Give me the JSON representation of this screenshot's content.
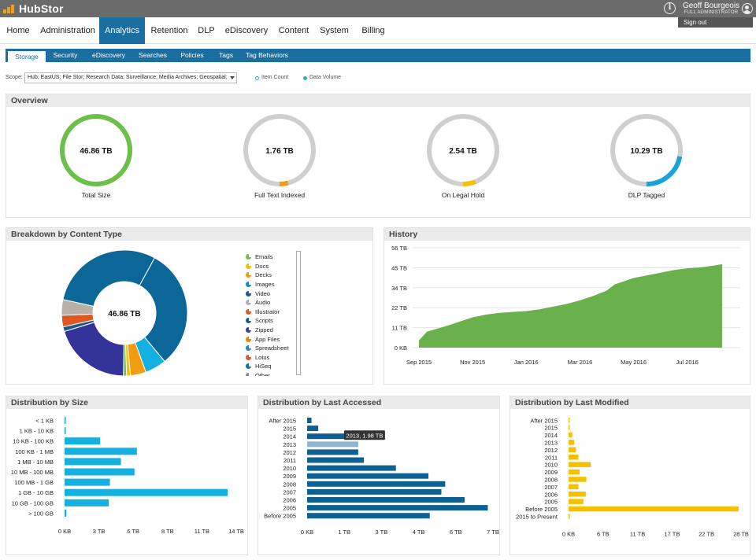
{
  "app": {
    "name": "HubStor"
  },
  "user": {
    "name": "Geoff Bourgeois",
    "role": "FULL ADMINISTRATOR",
    "signout": "Sign out"
  },
  "nav": [
    "Home",
    "Administration",
    "Analytics",
    "Retention",
    "DLP",
    "eDiscovery",
    "Content",
    "System",
    "Billing"
  ],
  "nav_active": "Analytics",
  "subnav": [
    "Storage",
    "Security",
    "eDiscovery",
    "Searches",
    "Policies",
    "Tags",
    "Tag Behaviors"
  ],
  "subnav_active": "Storage",
  "scope": {
    "label": "Scope:",
    "value": "Hub; EastUS; File Stor; Research Data; Surveillance; Media Archives; Geospatial;",
    "legend": [
      {
        "label": "Item Count",
        "style": "hollow",
        "color": "#29a9d6"
      },
      {
        "label": "Data Volume",
        "style": "filled",
        "color": "#29a9d6"
      }
    ]
  },
  "overview": {
    "title": "Overview",
    "gauges": [
      {
        "value": "46.86 TB",
        "label": "Total Size",
        "fraction": 1.0,
        "color": "#6cc04a"
      },
      {
        "value": "1.76 TB",
        "label": "Full Text Indexed",
        "fraction": 0.04,
        "color": "#f39c12"
      },
      {
        "value": "2.54 TB",
        "label": "On Legal Hold",
        "fraction": 0.06,
        "color": "#f5c000"
      },
      {
        "value": "10.29 TB",
        "label": "DLP Tagged",
        "fraction": 0.22,
        "color": "#1aa3d8"
      }
    ]
  },
  "breakdown": {
    "title": "Breakdown by Content Type",
    "center_label": "46.86 TB",
    "types": [
      {
        "label": "Emails",
        "color": "#6cc04a"
      },
      {
        "label": "Docs",
        "color": "#f5c000"
      },
      {
        "label": "Decks",
        "color": "#f39c12"
      },
      {
        "label": "Images",
        "color": "#1a8ac0"
      },
      {
        "label": "Video",
        "color": "#1a5a90"
      },
      {
        "label": "Audio",
        "color": "#b0b0b0"
      },
      {
        "label": "Illustrator",
        "color": "#e2571f"
      },
      {
        "label": "Scripts",
        "color": "#1a5a90"
      },
      {
        "label": "Zipped",
        "color": "#3a3aa0"
      },
      {
        "label": "App Files",
        "color": "#e08a00"
      },
      {
        "label": "Spreadsheet",
        "color": "#1a8ac0"
      },
      {
        "label": "Lotus",
        "color": "#e2571f"
      },
      {
        "label": "HiSeq",
        "color": "#1a6ea0"
      },
      {
        "label": "Other",
        "color": "#888888"
      }
    ]
  },
  "chart_data": [
    {
      "type": "pie",
      "title": "Breakdown by Content Type",
      "center_label": "46.86 TB",
      "slices": [
        {
          "label": "Images",
          "value": 0.31,
          "color": "#0b6797"
        },
        {
          "label": "Spreadsheet",
          "value": 0.055,
          "color": "#13b1e0"
        },
        {
          "label": "Decks",
          "value": 0.04,
          "color": "#f39c12"
        },
        {
          "label": "Docs",
          "value": 0.01,
          "color": "#f5c000"
        },
        {
          "label": "Emails",
          "value": 0.008,
          "color": "#6cc04a"
        },
        {
          "label": "Zipped",
          "value": 0.2,
          "color": "#33339a"
        },
        {
          "label": "Scripts",
          "value": 0.012,
          "color": "#1a5a90"
        },
        {
          "label": "Illustrator",
          "value": 0.03,
          "color": "#e2571f"
        },
        {
          "label": "Audio",
          "value": 0.04,
          "color": "#b9b0a8"
        },
        {
          "label": "Video",
          "value": 0.295,
          "color": "#0b6797"
        }
      ]
    },
    {
      "type": "area",
      "title": "History",
      "x_ticks": [
        "Sep 2015",
        "Nov 2015",
        "Jan 2016",
        "Mar 2016",
        "May 2016",
        "Jul 2016"
      ],
      "y_ticks": [
        "0 KB",
        "11 TB",
        "22 TB",
        "34 TB",
        "45 TB",
        "56 TB"
      ],
      "ylim": [
        0,
        56
      ],
      "x_months": [
        0,
        0.3,
        1,
        1.5,
        2,
        2.5,
        3,
        3.5,
        4,
        4.5,
        5,
        5.5,
        6,
        6.5,
        7,
        7.3,
        7.6,
        8,
        8.5,
        9,
        9.5,
        10,
        10.5,
        11,
        11.3
      ],
      "values": [
        4,
        9,
        12,
        14.5,
        17,
        18.5,
        19.5,
        20,
        20.5,
        21.5,
        23,
        24.5,
        26.5,
        29,
        32,
        35.5,
        37,
        39,
        40.5,
        42,
        43.5,
        44.5,
        45,
        46,
        46.8
      ],
      "color": "#6ab04c"
    },
    {
      "type": "bar",
      "orientation": "horizontal",
      "title": "Distribution by Size",
      "categories": [
        "< 1 KB",
        "1 KB - 10 KB",
        "10 KB - 100 KB",
        "100 KB - 1 MB",
        "1 MB - 10 MB",
        "10 MB - 100 MB",
        "100 MB - 1 GB",
        "1 GB - 10 GB",
        "10 GB - 100 GB",
        "> 100 GB"
      ],
      "values": [
        0.05,
        0.05,
        2.9,
        5.9,
        4.6,
        5.7,
        3.7,
        13.3,
        3.6,
        0.15
      ],
      "x_ticks": [
        "0 KB",
        "3 TB",
        "6 TB",
        "8 TB",
        "11 TB",
        "14 TB"
      ],
      "xlim": [
        0,
        14
      ],
      "color": "#14b0e0"
    },
    {
      "type": "bar",
      "orientation": "horizontal",
      "title": "Distribution by Last Accessed",
      "categories": [
        "After 2015",
        "2015",
        "2014",
        "2013",
        "2012",
        "2011",
        "2010",
        "2009",
        "2008",
        "2007",
        "2006",
        "2005",
        "Before 2005"
      ],
      "values": [
        0.17,
        0.43,
        1.55,
        1.98,
        1.98,
        2.2,
        3.44,
        4.7,
        5.35,
        5.2,
        6.1,
        7.0,
        4.75
      ],
      "highlight_index": 3,
      "tooltip": "2013, 1.98 TB",
      "x_ticks": [
        "0 KB",
        "1 TB",
        "3 TB",
        "4 TB",
        "6 TB",
        "7 TB"
      ],
      "xlim": [
        0,
        7.2
      ],
      "color": "#0e6090",
      "highlight_color": "#8fb6d0"
    },
    {
      "type": "bar",
      "orientation": "horizontal",
      "title": "Distribution by Last Modified",
      "categories": [
        "After 2015",
        "2015",
        "2014",
        "2013",
        "2012",
        "2011",
        "2010",
        "2009",
        "2008",
        "2007",
        "2006",
        "2005",
        "Before 2005",
        "2015 to Present"
      ],
      "values": [
        0.05,
        0.1,
        0.6,
        0.9,
        1.2,
        1.6,
        3.6,
        1.8,
        2.9,
        1.6,
        2.8,
        2.4,
        27.6,
        0.05
      ],
      "x_ticks": [
        "0 KB",
        "6 TB",
        "11 TB",
        "17 TB",
        "22 TB",
        "28 TB"
      ],
      "xlim": [
        0,
        28
      ],
      "color": "#f5c000"
    }
  ]
}
